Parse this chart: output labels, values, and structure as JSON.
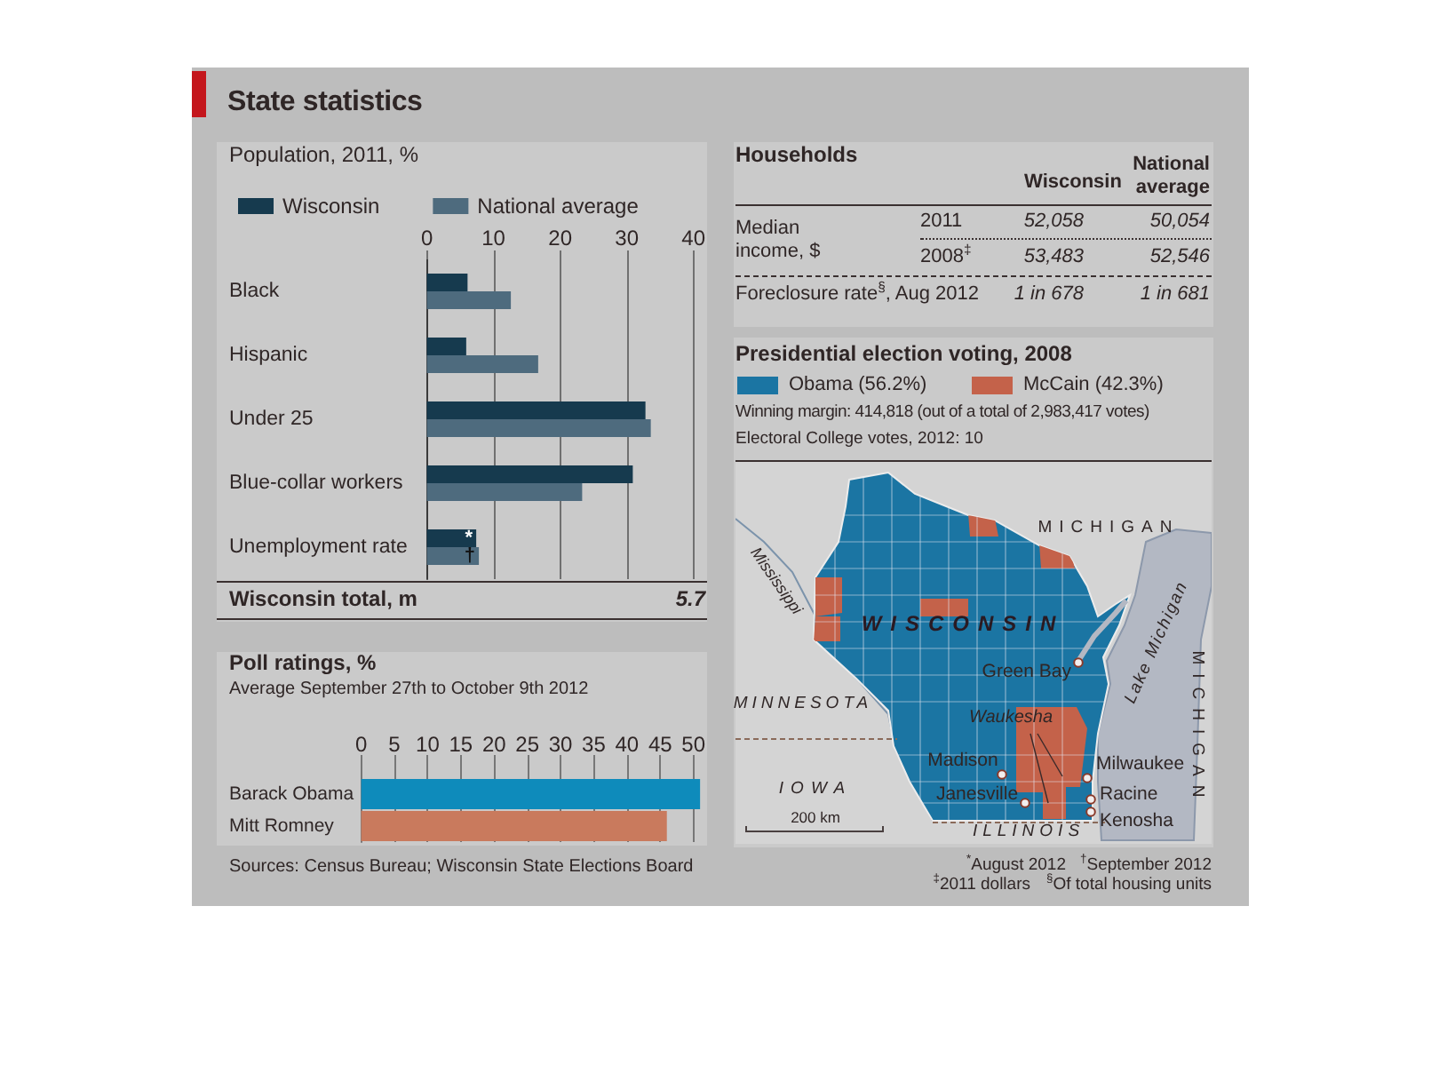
{
  "chart_data": [
    {
      "type": "bar",
      "orientation": "horizontal",
      "title": "State statistics",
      "subtitle": "Population, 2011, %",
      "categories": [
        "Black",
        "Hispanic",
        "Under 25",
        "Blue-collar workers",
        "Unemployment rate"
      ],
      "series": [
        {
          "name": "Wisconsin",
          "color": "#163a4e",
          "values": [
            6.1,
            5.9,
            32.8,
            30.9,
            7.4
          ],
          "value_labels": [
            null,
            null,
            null,
            null,
            "*"
          ]
        },
        {
          "name": "National average",
          "color": "#4e6b7e",
          "values": [
            12.6,
            16.7,
            33.6,
            23.3,
            7.8
          ],
          "value_labels": [
            null,
            null,
            null,
            null,
            "†"
          ]
        }
      ],
      "xlim": [
        0,
        40
      ],
      "xticks": [
        0,
        10,
        20,
        30,
        40
      ],
      "grid": "x",
      "legend": "top left",
      "annotations": [
        "Wisconsin total, m",
        "5.7",
        "$^{*}$August 2012",
        "$^{†}$September 2012"
      ]
    },
    {
      "type": "other",
      "title": "Households",
      "annotations": [
        "Wisconsin",
        "National average",
        "Median income, $",
        "2011",
        "52,058",
        "50,054",
        "2008$^{‡}$",
        "53,483",
        "52,546",
        "Foreclosure rate$^{§}$, Aug 2012",
        "1 in 678",
        "1 in 681",
        "$^{‡}$2011 dollars",
        "$^{§}$Of total housing units"
      ]
    },
    {
      "type": "other",
      "title": "Presidential election voting, 2008",
      "series": [
        {
          "name": "Obama (56.2%)",
          "color": "#1b75a3"
        },
        {
          "name": "McCain (42.3%)",
          "color": "#c4624a"
        }
      ],
      "legend": "top left",
      "annotations": [
        "Winning margin: 414,818 (out of a total of 2,983,417 votes)",
        "Electoral College votes, 2012: 10",
        "MICHIGAN",
        "WISCONSIN",
        "Mississippi",
        "Lake Michigan",
        "MICHIGAN",
        "MINNESOTA",
        "Green Bay",
        "Waukesha",
        "Madison",
        "Milwaukee",
        "IOWA",
        "Janesville",
        "Racine",
        "Kenosha",
        "ILLINOIS",
        "200 km"
      ]
    },
    {
      "type": "bar",
      "orientation": "horizontal",
      "title": "Poll ratings, %",
      "subtitle": "Average September 27th to October 9th 2012",
      "categories": [
        "Barack Obama",
        "Mitt Romney"
      ],
      "values": [
        51,
        46
      ],
      "colors": [
        "#0e8bbb",
        "#c97a5d"
      ],
      "xlim": [
        0,
        51.5
      ],
      "xticks": [
        0,
        5,
        10,
        15,
        20,
        25,
        30,
        35,
        40,
        45,
        50
      ],
      "grid": "x",
      "annotations": [
        "Sources: Census Bureau; Wisconsin State Elections Board"
      ]
    }
  ]
}
